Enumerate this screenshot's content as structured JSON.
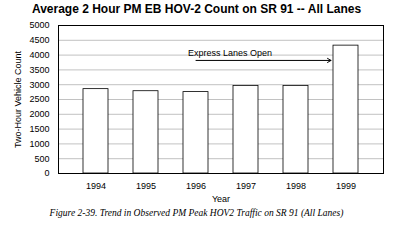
{
  "chart_data": {
    "type": "bar",
    "title": "Average 2 Hour PM EB HOV-2 Count on SR 91 -- All Lanes",
    "xlabel": "Year",
    "ylabel": "Two-Hour Vehicle Count",
    "caption": "Figure 2-39. Trend in Observed PM Peak HOV2 Traffic on SR 91 (All Lanes)",
    "categories": [
      "1994",
      "1995",
      "1996",
      "1997",
      "1998",
      "1999"
    ],
    "values": [
      2850,
      2780,
      2750,
      2960,
      2960,
      4320
    ],
    "color": "#ffffff",
    "ylim": [
      0,
      5000
    ],
    "yticks": [
      0,
      500,
      1000,
      1500,
      2000,
      2500,
      3000,
      3500,
      4000,
      4500,
      5000
    ],
    "grid": true,
    "annotations": [
      {
        "text": "Express Lanes Open",
        "x": "1996",
        "x_end": "1999",
        "y": 3820
      }
    ]
  }
}
